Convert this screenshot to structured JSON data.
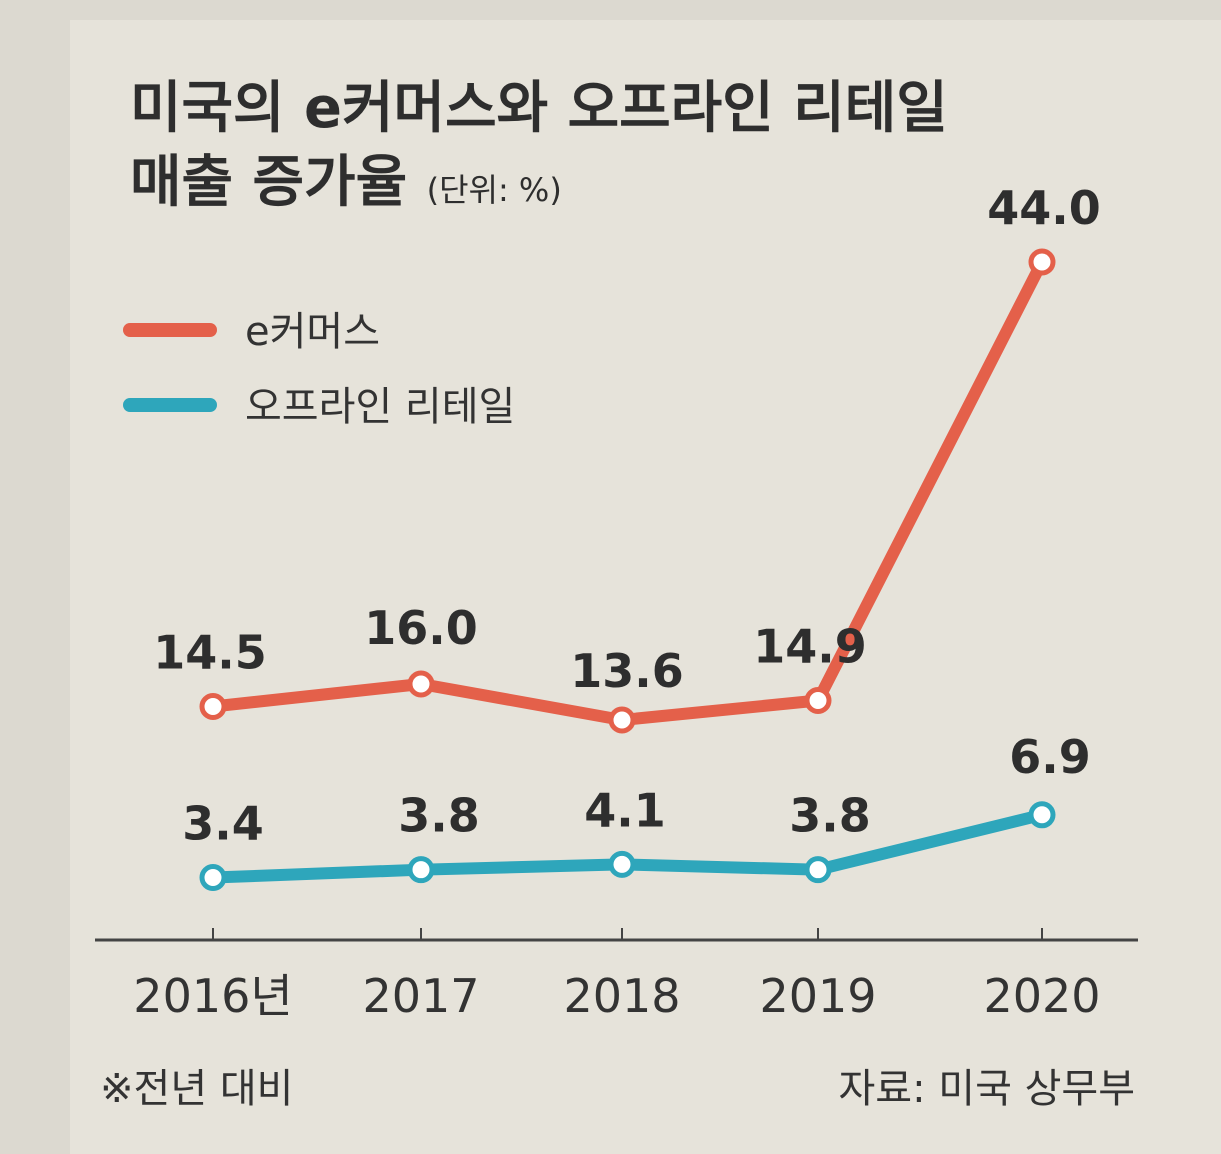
{
  "title_line1": "미국의 e커머스와 오프라인 리테일",
  "title_line2": "매출 증가율",
  "unit": "(단위: %)",
  "footnote": "※전년 대비",
  "source": "자료: 미국 상무부",
  "colors": {
    "ecommerce": "#e4604a",
    "offline": "#2ea6bb",
    "axis": "#444444"
  },
  "chart_data": {
    "type": "line",
    "title": "미국의 e커머스와 오프라인 리테일 매출 증가율",
    "unit": "%",
    "categories": [
      "2016년",
      "2017",
      "2018",
      "2019",
      "2020"
    ],
    "series": [
      {
        "name": "e커머스",
        "values": [
          14.5,
          16.0,
          13.6,
          14.9,
          44.0
        ],
        "labels": [
          "14.5",
          "16.0",
          "13.6",
          "14.9",
          "44.0"
        ]
      },
      {
        "name": "오프라인 리테일",
        "values": [
          3.4,
          3.8,
          4.1,
          3.8,
          6.9
        ],
        "labels": [
          "3.4",
          "3.8",
          "4.1",
          "3.8",
          "6.9"
        ]
      }
    ],
    "legend": "top-left",
    "grid": false
  }
}
